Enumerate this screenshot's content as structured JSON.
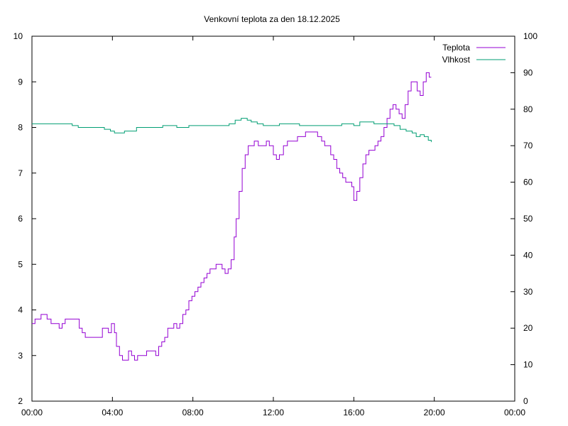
{
  "chart_data": {
    "type": "line",
    "title": "Venkovní teplota za den 18.12.2025",
    "xlabel": "",
    "ylabel": "",
    "y2label": "",
    "x_unit": "hours",
    "xlim": [
      0,
      24
    ],
    "x_ticks": [
      0,
      4,
      8,
      12,
      16,
      20,
      24
    ],
    "x_tick_labels": [
      "00:00",
      "04:00",
      "08:00",
      "12:00",
      "16:00",
      "20:00",
      "00:00"
    ],
    "ylim": [
      2,
      10
    ],
    "y_ticks": [
      2,
      3,
      4,
      5,
      6,
      7,
      8,
      9,
      10
    ],
    "y2lim": [
      0,
      100
    ],
    "y2_ticks": [
      0,
      10,
      20,
      30,
      40,
      50,
      60,
      70,
      80,
      90,
      100
    ],
    "grid": false,
    "legend_position": "top-right",
    "series": [
      {
        "name": "Teplota",
        "axis": "left",
        "color": "#9400d3",
        "x": [
          0.0,
          0.15,
          0.3,
          0.45,
          0.6,
          0.75,
          0.95,
          1.15,
          1.35,
          1.5,
          1.65,
          1.8,
          2.0,
          2.2,
          2.35,
          2.5,
          2.65,
          2.8,
          3.0,
          3.15,
          3.3,
          3.5,
          3.65,
          3.8,
          3.95,
          4.1,
          4.2,
          4.35,
          4.5,
          4.65,
          4.8,
          4.95,
          5.1,
          5.25,
          5.4,
          5.55,
          5.7,
          5.85,
          6.0,
          6.15,
          6.3,
          6.45,
          6.6,
          6.75,
          6.9,
          7.05,
          7.2,
          7.35,
          7.5,
          7.65,
          7.8,
          7.95,
          8.1,
          8.25,
          8.4,
          8.55,
          8.7,
          8.85,
          9.0,
          9.15,
          9.3,
          9.45,
          9.6,
          9.75,
          9.9,
          10.05,
          10.15,
          10.3,
          10.45,
          10.6,
          10.75,
          10.9,
          11.05,
          11.25,
          11.45,
          11.65,
          11.8,
          12.0,
          12.15,
          12.3,
          12.5,
          12.7,
          12.85,
          13.0,
          13.2,
          13.4,
          13.6,
          13.8,
          14.0,
          14.2,
          14.4,
          14.55,
          14.7,
          14.85,
          15.0,
          15.15,
          15.3,
          15.45,
          15.6,
          15.75,
          15.9,
          16.0,
          16.15,
          16.3,
          16.45,
          16.6,
          16.75,
          16.9,
          17.05,
          17.2,
          17.35,
          17.5,
          17.65,
          17.8,
          17.95,
          18.1,
          18.25,
          18.4,
          18.55,
          18.7,
          18.85,
          19.0,
          19.15,
          19.3,
          19.45,
          19.6,
          19.75,
          19.85
        ],
        "y": [
          3.7,
          3.8,
          3.8,
          3.9,
          3.9,
          3.8,
          3.7,
          3.7,
          3.6,
          3.7,
          3.8,
          3.8,
          3.8,
          3.8,
          3.6,
          3.5,
          3.4,
          3.4,
          3.4,
          3.4,
          3.4,
          3.6,
          3.6,
          3.5,
          3.7,
          3.5,
          3.2,
          3.0,
          2.9,
          2.9,
          3.1,
          3.0,
          2.9,
          3.0,
          3.0,
          3.0,
          3.1,
          3.1,
          3.1,
          3.0,
          3.2,
          3.3,
          3.4,
          3.6,
          3.6,
          3.7,
          3.6,
          3.7,
          3.9,
          4.0,
          4.2,
          4.3,
          4.4,
          4.5,
          4.6,
          4.7,
          4.8,
          4.9,
          4.9,
          5.0,
          5.0,
          4.9,
          4.8,
          4.9,
          5.1,
          5.6,
          6.0,
          6.6,
          7.1,
          7.4,
          7.6,
          7.6,
          7.7,
          7.6,
          7.6,
          7.7,
          7.6,
          7.4,
          7.3,
          7.4,
          7.6,
          7.7,
          7.7,
          7.7,
          7.8,
          7.8,
          7.9,
          7.9,
          7.9,
          7.8,
          7.7,
          7.6,
          7.6,
          7.4,
          7.3,
          7.1,
          7.0,
          6.9,
          6.8,
          6.8,
          6.7,
          6.4,
          6.6,
          6.9,
          7.2,
          7.4,
          7.5,
          7.5,
          7.6,
          7.7,
          7.8,
          8.0,
          8.2,
          8.4,
          8.5,
          8.4,
          8.3,
          8.2,
          8.5,
          8.8,
          9.0,
          9.0,
          8.8,
          8.7,
          9.0,
          9.2,
          9.1,
          9.1
        ]
      },
      {
        "name": "Vlhkost",
        "axis": "right",
        "color": "#009e73",
        "x": [
          0.0,
          0.5,
          1.0,
          1.5,
          2.0,
          2.3,
          2.6,
          3.0,
          3.3,
          3.6,
          3.9,
          4.1,
          4.3,
          4.6,
          4.9,
          5.2,
          5.5,
          5.8,
          6.1,
          6.5,
          6.9,
          7.2,
          7.5,
          7.8,
          8.2,
          8.6,
          9.0,
          9.4,
          9.8,
          10.1,
          10.4,
          10.7,
          10.9,
          11.2,
          11.5,
          11.8,
          12.0,
          12.3,
          12.7,
          13.0,
          13.3,
          13.6,
          14.0,
          14.3,
          14.6,
          15.0,
          15.4,
          15.7,
          16.0,
          16.3,
          16.7,
          17.0,
          17.4,
          17.7,
          18.0,
          18.3,
          18.6,
          18.9,
          19.1,
          19.3,
          19.5,
          19.7,
          19.85
        ],
        "y": [
          76,
          76,
          76,
          76,
          75.5,
          75,
          75,
          75,
          75,
          74.5,
          74,
          73.5,
          73.5,
          74,
          74,
          75,
          75,
          75,
          75,
          75.5,
          75.5,
          75,
          75,
          75.5,
          75.5,
          75.5,
          75.5,
          75.5,
          76,
          77,
          77.5,
          77,
          76.5,
          76,
          75.5,
          75.5,
          75.5,
          76,
          76,
          76,
          75.5,
          75.5,
          75.5,
          75.5,
          75.5,
          75.5,
          76,
          76,
          75.5,
          76.5,
          76.5,
          76,
          76,
          76,
          75.5,
          74.5,
          74,
          73.5,
          72.5,
          73,
          72.5,
          71.5,
          71
        ]
      }
    ]
  }
}
